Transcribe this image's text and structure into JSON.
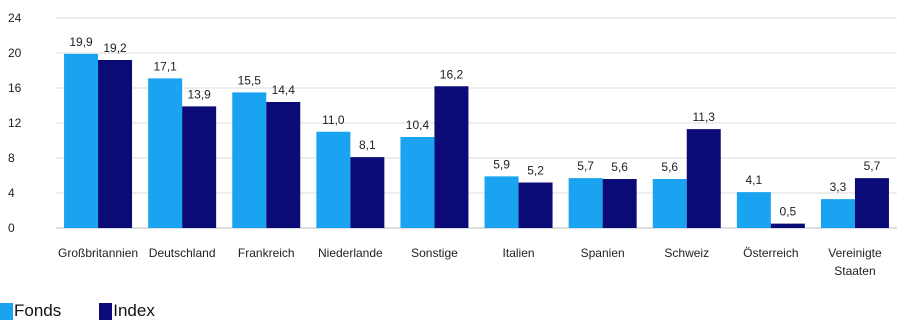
{
  "chart_data": {
    "type": "bar",
    "categories": [
      [
        "Großbritannien"
      ],
      [
        "Deutschland"
      ],
      [
        "Frankreich"
      ],
      [
        "Niederlande"
      ],
      [
        "Sonstige"
      ],
      [
        "Italien"
      ],
      [
        "Spanien"
      ],
      [
        "Schweiz"
      ],
      [
        "Österreich"
      ],
      [
        "Vereinigte",
        "Staaten"
      ]
    ],
    "series": [
      {
        "name": "Fonds",
        "color": "#1AA3F0",
        "values": [
          19.9,
          17.1,
          15.5,
          11.0,
          10.4,
          5.9,
          5.7,
          5.6,
          4.1,
          3.3
        ],
        "labels": [
          "19,9",
          "17,1",
          "15,5",
          "11,0",
          "10,4",
          "5,9",
          "5,7",
          "5,6",
          "4,1",
          "3,3"
        ]
      },
      {
        "name": "Index",
        "color": "#0B0B78",
        "values": [
          19.2,
          13.9,
          14.4,
          8.1,
          16.2,
          5.2,
          5.6,
          11.3,
          0.5,
          5.7
        ],
        "labels": [
          "19,2",
          "13,9",
          "14,4",
          "8,1",
          "16,2",
          "5,2",
          "5,6",
          "11,3",
          "0,5",
          "5,7"
        ]
      }
    ],
    "ylim": [
      0,
      24
    ],
    "yticks": [
      "0",
      "4",
      "8",
      "12",
      "16",
      "20",
      "24"
    ],
    "grid": true,
    "legend_placement": "bottom-left"
  }
}
